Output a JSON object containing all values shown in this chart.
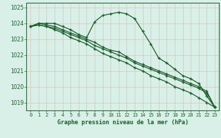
{
  "title": "Graphe pression niveau de la mer (hPa)",
  "bg_color": "#d8f0e8",
  "grid_color": "#e8b0b0",
  "line_color": "#1a5c2a",
  "spine_color": "#336633",
  "xlim": [
    -0.5,
    23.5
  ],
  "ylim": [
    1018.5,
    1025.3
  ],
  "yticks": [
    1019,
    1020,
    1021,
    1022,
    1023,
    1024,
    1025
  ],
  "xticks": [
    0,
    1,
    2,
    3,
    4,
    5,
    6,
    7,
    8,
    9,
    10,
    11,
    12,
    13,
    14,
    15,
    16,
    17,
    18,
    19,
    20,
    21,
    22,
    23
  ],
  "series": [
    {
      "x": [
        0,
        1,
        2,
        3,
        4,
        5,
        6,
        7,
        8,
        9,
        10,
        11,
        12,
        13,
        14,
        15,
        16,
        17,
        18,
        19,
        20,
        21,
        22,
        23
      ],
      "y": [
        1023.8,
        1024.0,
        1024.0,
        1024.0,
        1023.8,
        1023.6,
        1023.3,
        1023.1,
        1024.1,
        1024.5,
        1024.6,
        1024.7,
        1024.6,
        1024.3,
        1023.5,
        1022.7,
        1021.8,
        1021.5,
        1021.1,
        1020.7,
        1020.5,
        1020.2,
        1019.4,
        1018.7
      ]
    },
    {
      "x": [
        0,
        1,
        2,
        3,
        4,
        5,
        6,
        7,
        8,
        9,
        10,
        11,
        12,
        13,
        14,
        15,
        16,
        17,
        18,
        19,
        20,
        21,
        22,
        23
      ],
      "y": [
        1023.8,
        1024.0,
        1023.9,
        1023.8,
        1023.6,
        1023.4,
        1023.2,
        1023.0,
        1022.8,
        1022.5,
        1022.3,
        1022.2,
        1021.9,
        1021.6,
        1021.4,
        1021.2,
        1021.0,
        1020.8,
        1020.6,
        1020.4,
        1020.2,
        1020.0,
        1019.7,
        1018.7
      ]
    },
    {
      "x": [
        0,
        1,
        2,
        3,
        4,
        5,
        6,
        7,
        8,
        9,
        10,
        11,
        12,
        13,
        14,
        15,
        16,
        17,
        18,
        19,
        20,
        21,
        22,
        23
      ],
      "y": [
        1023.8,
        1023.9,
        1023.8,
        1023.7,
        1023.5,
        1023.3,
        1023.1,
        1022.9,
        1022.6,
        1022.4,
        1022.2,
        1022.0,
        1021.8,
        1021.5,
        1021.3,
        1021.1,
        1020.9,
        1020.7,
        1020.5,
        1020.3,
        1020.1,
        1019.9,
        1019.6,
        1018.7
      ]
    },
    {
      "x": [
        0,
        1,
        2,
        3,
        4,
        5,
        6,
        7,
        8,
        9,
        10,
        11,
        12,
        13,
        14,
        15,
        16,
        17,
        18,
        19,
        20,
        21,
        22,
        23
      ],
      "y": [
        1023.8,
        1023.9,
        1023.8,
        1023.6,
        1023.4,
        1023.1,
        1022.9,
        1022.7,
        1022.4,
        1022.1,
        1021.9,
        1021.7,
        1021.5,
        1021.2,
        1021.0,
        1020.7,
        1020.5,
        1020.3,
        1020.0,
        1019.8,
        1019.6,
        1019.3,
        1019.0,
        1018.7
      ]
    }
  ]
}
